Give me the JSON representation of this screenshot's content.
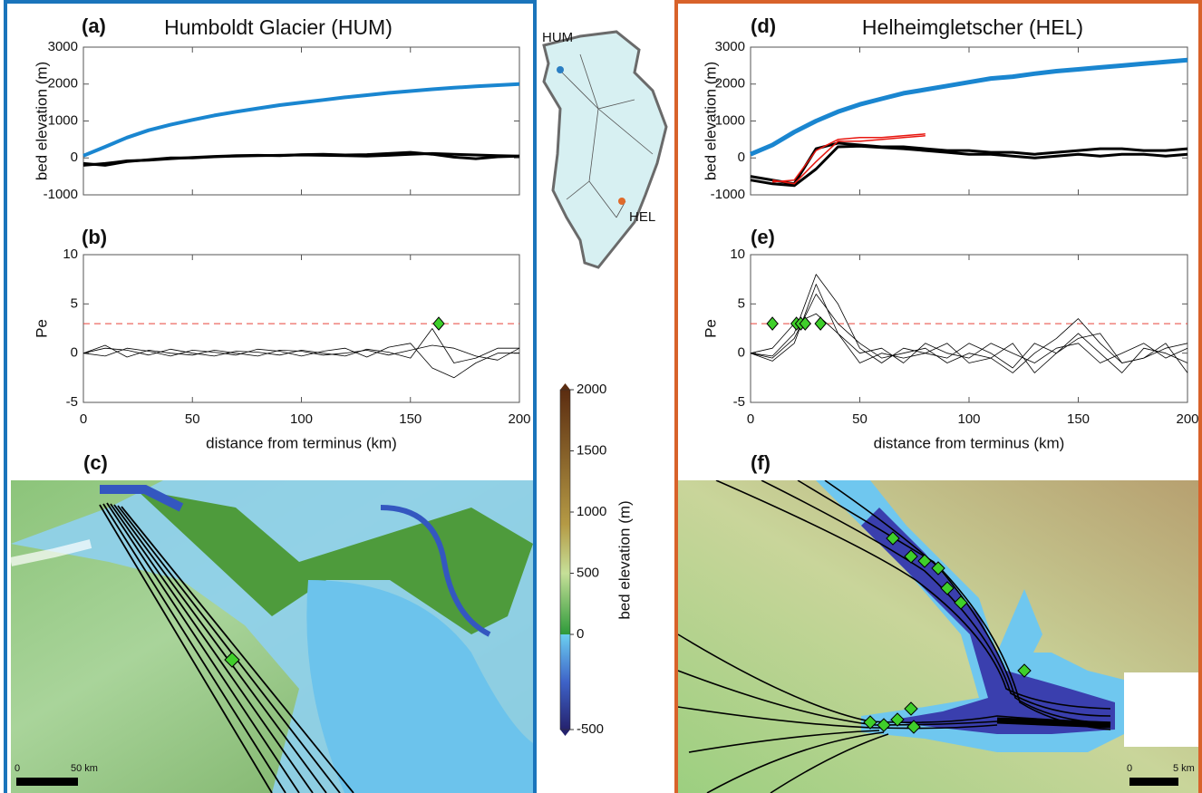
{
  "chart_data": [
    {
      "type": "line",
      "panel": "(a)",
      "title": "Humboldt Glacier (HUM)",
      "ylabel": "bed elevation (m)",
      "x": [
        0,
        10,
        20,
        30,
        40,
        50,
        60,
        70,
        80,
        90,
        100,
        110,
        120,
        130,
        140,
        150,
        160,
        170,
        180,
        190,
        200
      ],
      "series": [
        {
          "color": "#1a86d0",
          "linewidth": 4,
          "values": [
            60,
            300,
            550,
            750,
            900,
            1030,
            1150,
            1250,
            1340,
            1430,
            1500,
            1570,
            1640,
            1700,
            1760,
            1810,
            1860,
            1900,
            1940,
            1970,
            2000
          ]
        },
        {
          "color": "#000000",
          "linewidth": 3,
          "values": [
            -150,
            -200,
            -100,
            -50,
            0,
            0,
            30,
            50,
            60,
            70,
            80,
            70,
            60,
            50,
            70,
            100,
            120,
            100,
            80,
            60,
            50
          ]
        },
        {
          "color": "#000000",
          "linewidth": 3,
          "values": [
            -200,
            -150,
            -80,
            -60,
            -20,
            10,
            40,
            60,
            70,
            60,
            90,
            100,
            80,
            90,
            120,
            150,
            100,
            20,
            -20,
            30,
            50
          ]
        }
      ],
      "xlim": [
        0,
        200
      ],
      "ylim": [
        -1000,
        3000
      ],
      "xticks": [
        0,
        50,
        100,
        150,
        200
      ],
      "yticks": [
        -1000,
        0,
        1000,
        2000,
        3000
      ],
      "show_xticklabels": false
    },
    {
      "type": "line",
      "panel": "(b)",
      "xlabel": "distance from terminus (km)",
      "ylabel": "Pe",
      "x": [
        0,
        10,
        20,
        30,
        40,
        50,
        60,
        70,
        80,
        90,
        100,
        110,
        120,
        130,
        140,
        150,
        160,
        170,
        180,
        190,
        200
      ],
      "series": [
        {
          "color": "#000000",
          "linewidth": 0.8,
          "values": [
            0,
            0.5,
            0.3,
            -0.2,
            0.4,
            0,
            -0.3,
            0.2,
            0.1,
            -0.2,
            0.3,
            0,
            -0.3,
            0.4,
            0.1,
            -0.5,
            2.5,
            -1,
            -0.5,
            0.5,
            0.5
          ]
        },
        {
          "color": "#000000",
          "linewidth": 0.8,
          "values": [
            0,
            -0.3,
            0.5,
            0.2,
            -0.3,
            0.3,
            0.1,
            -0.2,
            0.4,
            0.2,
            -0.3,
            0.2,
            0.5,
            -0.4,
            0.6,
            1,
            -1.5,
            -2.5,
            -1,
            0,
            0
          ]
        },
        {
          "color": "#000000",
          "linewidth": 0.8,
          "values": [
            0,
            0.8,
            -0.4,
            0.3,
            0,
            -0.2,
            0.3,
            0,
            -0.3,
            0.3,
            0.2,
            -0.2,
            0,
            0.3,
            -0.2,
            0.3,
            0.8,
            0.5,
            -0.3,
            -0.7,
            0.5
          ]
        }
      ],
      "threshold": 3,
      "threshold_color": "#e8433a",
      "markers": {
        "x": [
          163
        ],
        "values": [
          3
        ],
        "color": "#3fcf2a"
      },
      "xlim": [
        0,
        200
      ],
      "ylim": [
        -5,
        10
      ],
      "xticks": [
        0,
        50,
        100,
        150,
        200
      ],
      "yticks": [
        -5,
        0,
        5,
        10
      ],
      "show_xticklabels": true
    },
    {
      "type": "line",
      "panel": "(d)",
      "title": "Helheimgletscher (HEL)",
      "ylabel": "bed elevation (m)",
      "x": [
        0,
        10,
        20,
        30,
        40,
        50,
        60,
        70,
        80,
        90,
        100,
        110,
        120,
        130,
        140,
        150,
        160,
        170,
        180,
        190,
        200
      ],
      "series": [
        {
          "color": "#1a86d0",
          "linewidth": 5,
          "values": [
            100,
            350,
            700,
            1000,
            1250,
            1450,
            1600,
            1750,
            1850,
            1950,
            2050,
            2150,
            2200,
            2280,
            2350,
            2400,
            2450,
            2500,
            2550,
            2600,
            2650
          ]
        },
        {
          "color": "#000000",
          "linewidth": 3,
          "values": [
            -500,
            -600,
            -700,
            250,
            400,
            350,
            300,
            300,
            250,
            200,
            200,
            150,
            150,
            100,
            150,
            200,
            250,
            250,
            200,
            200,
            250
          ]
        },
        {
          "color": "#000000",
          "linewidth": 3,
          "values": [
            -600,
            -700,
            -750,
            -300,
            300,
            320,
            280,
            250,
            200,
            150,
            100,
            100,
            50,
            0,
            50,
            100,
            50,
            100,
            100,
            50,
            100
          ]
        },
        {
          "color": "#e8160f",
          "linewidth": 1.5,
          "values": [
            null,
            -650,
            -600,
            200,
            500,
            550,
            550,
            600,
            650,
            null,
            null,
            null,
            null,
            null,
            null,
            null,
            null,
            null,
            null,
            null,
            null
          ]
        },
        {
          "color": "#e8160f",
          "linewidth": 1.5,
          "values": [
            null,
            -600,
            -700,
            -100,
            450,
            450,
            500,
            550,
            600,
            null,
            null,
            null,
            null,
            null,
            null,
            null,
            null,
            null,
            null,
            null,
            null
          ]
        }
      ],
      "xlim": [
        0,
        200
      ],
      "ylim": [
        -1000,
        3000
      ],
      "xticks": [
        0,
        50,
        100,
        150,
        200
      ],
      "yticks": [
        -1000,
        0,
        1000,
        2000,
        3000
      ],
      "show_xticklabels": false
    },
    {
      "type": "line",
      "panel": "(e)",
      "xlabel": "distance from terminus (km)",
      "ylabel": "Pe",
      "x": [
        0,
        10,
        20,
        30,
        40,
        50,
        60,
        70,
        80,
        90,
        100,
        110,
        120,
        130,
        140,
        150,
        160,
        170,
        180,
        190,
        200
      ],
      "series": [
        {
          "color": "#000000",
          "linewidth": 0.8,
          "values": [
            0,
            -0.5,
            1.5,
            6,
            3,
            1,
            -0.5,
            0,
            0.5,
            -1,
            0,
            -0.5,
            -2,
            0,
            1.5,
            3.5,
            1,
            -1,
            -0.5,
            0.5,
            1
          ]
        },
        {
          "color": "#000000",
          "linewidth": 0.8,
          "values": [
            0,
            -0.3,
            2,
            8,
            5,
            0.5,
            -1,
            0.5,
            0,
            -0.5,
            1,
            0,
            -1.5,
            1,
            0,
            2,
            0,
            -2,
            0.5,
            0,
            -1
          ]
        },
        {
          "color": "#000000",
          "linewidth": 0.8,
          "values": [
            0,
            0.5,
            3,
            4,
            2,
            0,
            0.5,
            -1,
            1,
            0,
            -0.5,
            1,
            0,
            -1,
            0.5,
            1,
            -1,
            0,
            1,
            -0.5,
            0.5
          ]
        },
        {
          "color": "#000000",
          "linewidth": 0.8,
          "values": [
            0,
            -0.8,
            1,
            7,
            2,
            -1,
            0,
            -0.5,
            0,
            1,
            -1,
            -0.5,
            1,
            -2,
            0,
            1.5,
            2,
            -1,
            -0.5,
            1,
            -2
          ]
        }
      ],
      "threshold": 3,
      "threshold_color": "#e8433a",
      "markers": {
        "x": [
          10,
          21,
          23,
          25,
          32
        ],
        "values": [
          3,
          3,
          3,
          3,
          3
        ],
        "color": "#3fcf2a"
      },
      "xlim": [
        0,
        200
      ],
      "ylim": [
        -5,
        10
      ],
      "xticks": [
        0,
        50,
        100,
        150,
        200
      ],
      "yticks": [
        -5,
        0,
        5,
        10
      ],
      "show_xticklabels": true
    }
  ],
  "maps": [
    {
      "panel": "(c)",
      "scale_start": "0",
      "scale_end": "50 km"
    },
    {
      "panel": "(f)",
      "scale_start": "0",
      "scale_end": "5 km"
    }
  ],
  "inset": {
    "labels": [
      "HUM",
      "HEL"
    ]
  },
  "colorbar": {
    "label": "bed elevation (m)",
    "lim": [
      -500,
      2000
    ],
    "ticks": [
      -500,
      0,
      500,
      1000,
      1500,
      2000
    ]
  }
}
